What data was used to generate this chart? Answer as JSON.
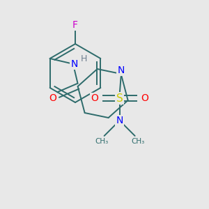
{
  "background_color": "#e8e8e8",
  "atom_colors": {
    "C": "#2d6b6b",
    "N": "#0000ff",
    "O": "#ff0000",
    "F": "#cc00cc",
    "S": "#cccc00",
    "H": "#708090"
  },
  "bond_color": "#2d6b6b",
  "figsize": [
    3.0,
    3.0
  ],
  "dpi": 100
}
